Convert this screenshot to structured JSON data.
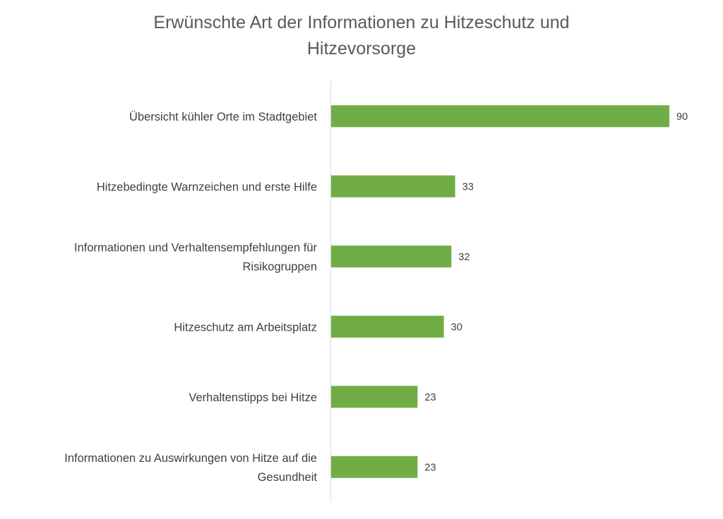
{
  "chart_data": {
    "type": "bar",
    "orientation": "horizontal",
    "title": "Erwünschte Art der Informationen zu Hitzeschutz und\nHitzevorsorge",
    "categories": [
      "Übersicht kühler Orte im Stadtgebiet",
      "Hitzebedingte Warnzeichen und erste Hilfe",
      "Informationen und Verhaltensempfehlungen für\nRisikogruppen",
      "Hitzeschutz am Arbeitsplatz",
      "Verhaltenstipps bei Hitze",
      "Informationen zu Auswirkungen von Hitze auf die\nGesundheit"
    ],
    "values": [
      90,
      33,
      32,
      30,
      23,
      23
    ],
    "xlim": [
      0,
      90
    ],
    "xlabel": "",
    "ylabel": "",
    "grid": false,
    "legend": "none",
    "data_labels": true,
    "bar_color": "#70AD47",
    "axis_color": "#D9D9D9"
  }
}
